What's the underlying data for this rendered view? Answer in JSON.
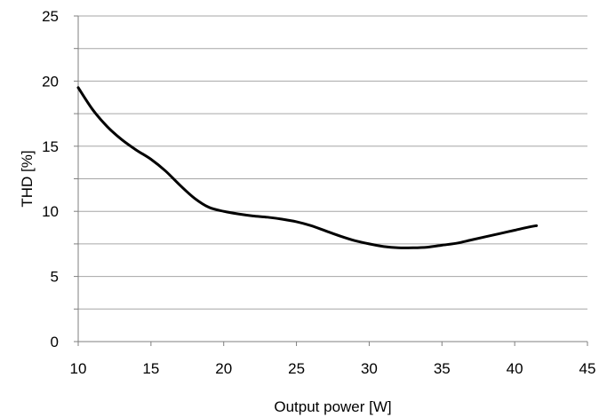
{
  "chart_data": {
    "type": "line",
    "xlabel": "Output power [W]",
    "ylabel": "THD [%]",
    "xlim": [
      10,
      45
    ],
    "ylim": [
      0,
      25
    ],
    "x_ticks": [
      10,
      15,
      20,
      25,
      30,
      35,
      40,
      45
    ],
    "y_ticks": [
      0,
      5,
      10,
      15,
      20,
      25
    ],
    "minor_gridlines_y": [
      2.5,
      7.5,
      12.5,
      17.5,
      22.5
    ],
    "grid": "horizontal",
    "line_color": "#000000",
    "grid_color": "#a6a6a6",
    "series": [
      {
        "x": [
          10,
          11,
          12,
          13,
          14,
          15,
          16,
          17,
          18,
          19,
          20,
          21,
          22,
          23,
          24,
          25,
          26,
          27,
          28,
          29,
          30,
          31,
          32,
          33,
          34,
          35,
          36,
          37,
          38,
          39,
          40,
          41,
          41.5
        ],
        "y": [
          19.5,
          17.8,
          16.5,
          15.5,
          14.7,
          14.0,
          13.1,
          12.0,
          11.0,
          10.3,
          10.0,
          9.8,
          9.65,
          9.55,
          9.4,
          9.2,
          8.9,
          8.5,
          8.1,
          7.75,
          7.5,
          7.3,
          7.2,
          7.2,
          7.25,
          7.4,
          7.55,
          7.8,
          8.05,
          8.3,
          8.55,
          8.8,
          8.9
        ]
      }
    ]
  }
}
